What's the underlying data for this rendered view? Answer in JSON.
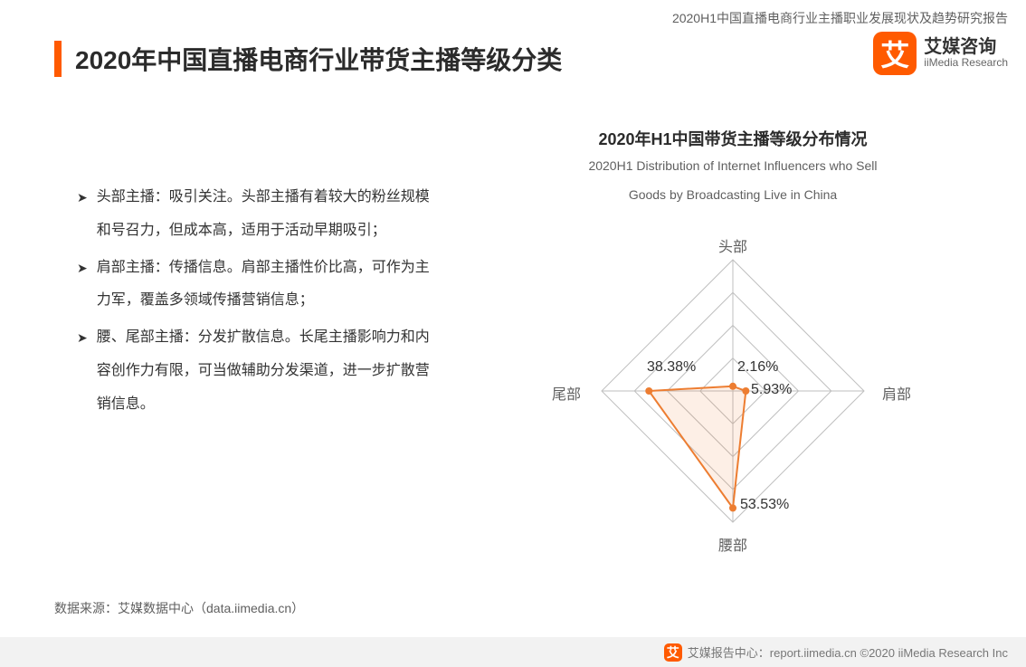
{
  "header": {
    "report_title": "2020H1中国直播电商行业主播职业发展现状及趋势研究报告",
    "logo": {
      "cn": "艾媒咨询",
      "en": "iiMedia Research",
      "glyph": "艾",
      "bg": "#ff5a00"
    }
  },
  "title": "2020年中国直播电商行业带货主播等级分类",
  "title_bar_color": "#ff5a00",
  "bullets": [
    "头部主播：吸引关注。头部主播有着较大的粉丝规模和号召力，但成本高，适用于活动早期吸引；",
    "肩部主播：传播信息。肩部主播性价比高，可作为主力军，覆盖多领域传播营销信息；",
    "腰、尾部主播：分发扩散信息。长尾主播影响力和内容创作力有限，可当做辅助分发渠道，进一步扩散营销信息。"
  ],
  "chart": {
    "type": "radar",
    "title_cn": "2020年H1中国带货主播等级分布情况",
    "title_en_l1": "2020H1 Distribution of Internet Influencers who Sell",
    "title_en_l2": "Goods by Broadcasting Live  in China",
    "axes": [
      {
        "label": "头部",
        "value": 2.16,
        "value_label": "2.16%"
      },
      {
        "label": "肩部",
        "value": 5.93,
        "value_label": "5.93%"
      },
      {
        "label": "腰部",
        "value": 53.53,
        "value_label": "53.53%"
      },
      {
        "label": "尾部",
        "value": 38.38,
        "value_label": "38.38%"
      }
    ],
    "max_scale": 60,
    "ring_count": 4,
    "grid_color": "#bfbfbf",
    "series_color": "#ed7d31",
    "series_fill": "rgba(237,125,49,0.12)",
    "line_width": 2,
    "background_color": "#ffffff",
    "label_color": "#5f5f5f",
    "data_label_color": "#333333",
    "label_fontsize": 16
  },
  "source": "数据来源：艾媒数据中心（data.iimedia.cn）",
  "footer": {
    "text": "艾媒报告中心：report.iimedia.cn   ©2020  iiMedia Research  Inc",
    "logo_glyph": "艾"
  }
}
